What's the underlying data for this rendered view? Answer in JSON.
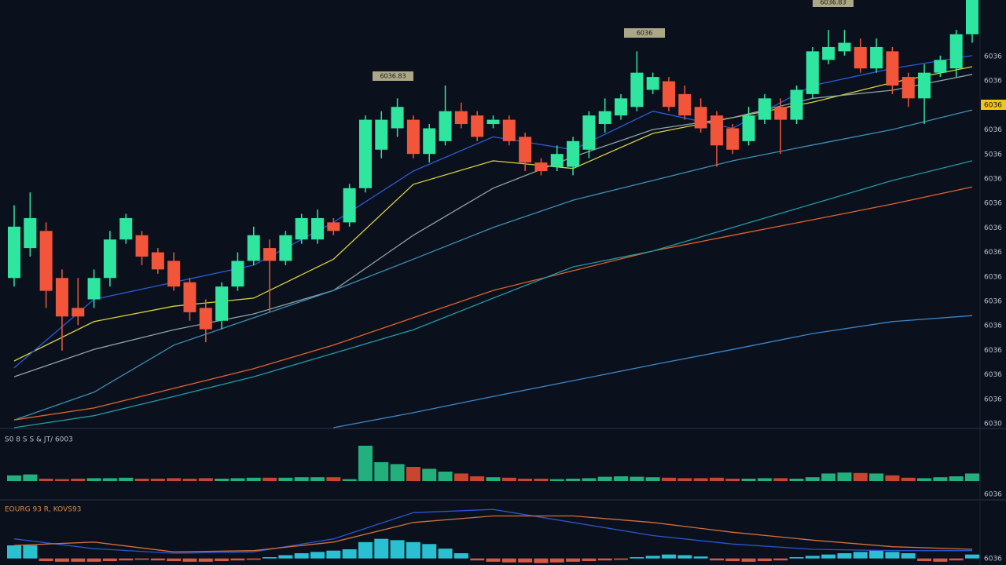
{
  "chart_data": {
    "type": "candlestick",
    "up_color": "#2ee6a0",
    "down_color": "#f2553a",
    "ylim": [
      0,
      100
    ],
    "open": [
      35,
      42,
      46,
      35,
      28,
      30,
      35,
      44,
      45,
      41,
      39,
      34,
      28,
      25,
      33,
      39,
      42,
      39,
      44,
      44,
      48,
      48,
      56,
      65,
      70,
      72,
      64,
      67,
      74,
      73,
      71,
      72,
      68,
      62,
      61,
      61,
      65,
      71,
      73,
      75,
      79,
      81,
      78,
      75,
      73,
      70,
      67,
      72,
      75,
      72,
      78,
      86,
      88,
      89,
      84,
      88,
      82,
      77,
      83,
      84,
      92
    ],
    "high": [
      52,
      55,
      48,
      37,
      35,
      37,
      46,
      50,
      46,
      42,
      41,
      35,
      30,
      34,
      41,
      47,
      44,
      46,
      50,
      51,
      49,
      57,
      73,
      74,
      77,
      73,
      71,
      80,
      76,
      74,
      73,
      73,
      69,
      63,
      66,
      68,
      74,
      77,
      78,
      88,
      83,
      82,
      80,
      77,
      74,
      71,
      75,
      78,
      77,
      80,
      89,
      93,
      93,
      91,
      91,
      89,
      83,
      85,
      87,
      93,
      100
    ],
    "low": [
      33,
      40,
      28,
      18,
      24,
      28,
      33,
      43,
      38,
      36,
      32,
      25,
      20,
      23,
      32,
      38,
      27,
      38,
      43,
      43,
      45,
      47,
      55,
      63,
      68,
      63,
      62,
      66,
      70,
      67,
      70,
      66,
      60,
      59,
      60,
      59,
      63,
      69,
      72,
      74,
      78,
      74,
      72,
      69,
      61,
      64,
      66,
      71,
      64,
      71,
      77,
      85,
      87,
      83,
      83,
      78,
      75,
      71,
      82,
      82,
      90
    ],
    "close": [
      47,
      49,
      32,
      26,
      26,
      35,
      44,
      49,
      40,
      37,
      33,
      27,
      23,
      33,
      39,
      45,
      39,
      45,
      49,
      49,
      46,
      56,
      72,
      72,
      75,
      64,
      70,
      74,
      71,
      68,
      72,
      67,
      62,
      60,
      64,
      67,
      73,
      74,
      77,
      83,
      82,
      75,
      73,
      70,
      66,
      65,
      73,
      77,
      72,
      79,
      88,
      89,
      90,
      84,
      89,
      80,
      77,
      83,
      86,
      92,
      100
    ],
    "overlay_x": [
      0,
      5,
      10,
      15,
      20,
      25,
      30,
      35,
      40,
      45,
      50,
      55,
      60
    ],
    "overlays": [
      {
        "color": "#d9d23a",
        "values": [
          15.6,
          24.8,
          28.4,
          30.3,
          39.4,
          56.9,
          62.4,
          60.6,
          68.8,
          72.5,
          76.1,
          80.7,
          84.4
        ]
      },
      {
        "color": "#2a5bd6",
        "values": [
          14,
          30,
          34,
          38,
          48,
          60,
          68,
          65,
          74,
          70,
          80,
          84,
          87
        ]
      },
      {
        "color": "#8fa3a8",
        "values": [
          11.9,
          18.3,
          22.9,
          26.6,
          32.1,
          45,
          56,
          63.3,
          69.7,
          72.5,
          77,
          78.9,
          82.6
        ]
      },
      {
        "color": "#3b8fb5",
        "values": [
          1.8,
          8.3,
          19.3,
          25.7,
          32.1,
          39.4,
          46.8,
          53.2,
          57.8,
          62.4,
          66.1,
          69.7,
          74.3
        ]
      },
      {
        "color": "#e0622e",
        "values": [
          1.8,
          4.6,
          9.2,
          13.8,
          19.3,
          25.7,
          32.1,
          36.7,
          41.3,
          45,
          48.6,
          52.3,
          56.3
        ]
      },
      {
        "color": "#1f9aa6",
        "values": [
          0,
          2.8,
          7.3,
          11.9,
          17.4,
          22.9,
          30.3,
          37.6,
          41.3,
          46.8,
          52.3,
          57.8,
          62.4
        ]
      },
      {
        "color": "#3a86c8",
        "values": [
          null,
          null,
          null,
          null,
          0,
          3.5,
          7.3,
          11,
          14.7,
          18.3,
          22,
          24.8,
          26.2
        ]
      }
    ],
    "axis_labels": [
      "6036",
      "6036",
      "6036",
      "6036",
      "5036",
      "6036",
      "6036",
      "6036",
      "6036",
      "6036",
      "6036",
      "6036",
      "6036",
      "6036",
      "6036",
      "6030"
    ],
    "current_price_label": "6036",
    "tags": [
      "6036.83",
      "6036",
      "6036.83"
    ],
    "volume": {
      "label": "S0 8 S S & JT/ 6003",
      "ylim": [
        0,
        100
      ],
      "values": [
        12,
        14,
        5,
        4,
        5,
        6,
        6,
        7,
        5,
        5,
        6,
        5,
        6,
        5,
        6,
        7,
        7,
        7,
        8,
        8,
        8,
        4,
        75,
        40,
        36,
        30,
        26,
        20,
        16,
        10,
        8,
        7,
        5,
        5,
        4,
        5,
        6,
        9,
        10,
        9,
        8,
        7,
        6,
        6,
        7,
        5,
        5,
        6,
        6,
        5,
        8,
        16,
        18,
        17,
        16,
        12,
        7,
        6,
        8,
        10,
        16
      ],
      "axis_label": "6036"
    },
    "macd": {
      "label": "EOURG 93 R, KOVS93",
      "ylim": [
        -10,
        80
      ],
      "up_color": "#2fd4e6",
      "down_color": "#f0604a",
      "values": [
        20,
        20,
        -4,
        -5,
        -5,
        -5,
        -4,
        -3,
        -2,
        -3,
        -4,
        -5,
        -5,
        -4,
        -3,
        -2,
        2,
        5,
        8,
        10,
        12,
        14,
        25,
        30,
        28,
        25,
        22,
        15,
        8,
        -3,
        -5,
        -6,
        -6,
        -7,
        -6,
        -5,
        -4,
        -3,
        -2,
        2,
        4,
        6,
        5,
        3,
        -3,
        -4,
        -5,
        -4,
        -3,
        2,
        4,
        6,
        8,
        10,
        12,
        10,
        8,
        -4,
        -5,
        -3,
        6
      ],
      "lines": [
        {
          "color": "#2a55d0",
          "values": [
            30,
            15,
            8,
            10,
            30,
            70,
            75,
            55,
            35,
            22,
            14,
            12,
            12
          ]
        },
        {
          "color": "#d0703a",
          "values": [
            20,
            25,
            10,
            12,
            25,
            55,
            65,
            65,
            55,
            40,
            28,
            18,
            14
          ]
        }
      ],
      "axis_label": "6036"
    }
  }
}
